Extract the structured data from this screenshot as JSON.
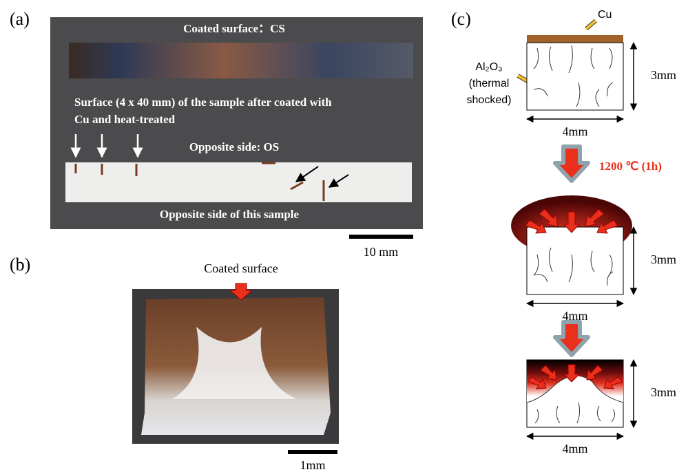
{
  "panel_a": {
    "label": "(a)",
    "title": "Coated surface：CS",
    "caption_lines": [
      "Surface (4 x 40 mm) of the sample after coated with",
      "Cu and  heat-treated"
    ],
    "os_title": "Opposite side: OS",
    "os_caption": "Opposite side of  this sample",
    "scale_bar": "10 mm"
  },
  "panel_b": {
    "label": "(b)",
    "title": "Coated surface",
    "scale_bar": "1mm"
  },
  "panel_c": {
    "label": "(c)",
    "cu": "Cu",
    "al2o3": "Al₂O₃",
    "al2o3_lines": [
      "(thermal",
      "shocked)"
    ],
    "condition": "1200 ℃ (1h)",
    "steps": [
      {
        "height": "3mm",
        "width": "4mm"
      },
      {
        "height": "3mm",
        "width": "4mm"
      },
      {
        "height": "3mm",
        "width": "4mm"
      }
    ]
  }
}
